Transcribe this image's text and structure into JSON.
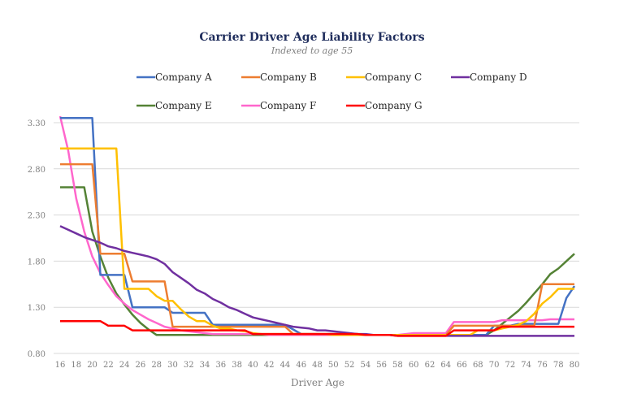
{
  "chart_data": {
    "type": "line",
    "title": "Carrier Driver Age Liability Factors",
    "subtitle": "Indexed to age 55",
    "xlabel": "Driver Age",
    "ylabel": "",
    "ylim": [
      0.8,
      3.3
    ],
    "yticks": [
      "3.30",
      "2.80",
      "2.30",
      "1.80",
      "1.30",
      "0.80"
    ],
    "ytick_values": [
      3.3,
      2.8,
      2.3,
      1.8,
      1.3,
      0.8
    ],
    "xlim": [
      16,
      80
    ],
    "xticks": [
      "16",
      "18",
      "20",
      "22",
      "24",
      "26",
      "28",
      "30",
      "32",
      "34",
      "36",
      "38",
      "40",
      "42",
      "44",
      "46",
      "48",
      "50",
      "52",
      "54",
      "56",
      "58",
      "60",
      "62",
      "64",
      "66",
      "68",
      "70",
      "72",
      "74",
      "76",
      "78",
      "80"
    ],
    "grid": true,
    "legend_position": "top",
    "x": [
      16,
      17,
      18,
      19,
      20,
      21,
      22,
      23,
      24,
      25,
      26,
      27,
      28,
      29,
      30,
      31,
      32,
      33,
      34,
      35,
      36,
      37,
      38,
      39,
      40,
      41,
      42,
      43,
      44,
      45,
      46,
      47,
      48,
      49,
      50,
      51,
      52,
      53,
      54,
      55,
      56,
      57,
      58,
      59,
      60,
      61,
      62,
      63,
      64,
      65,
      66,
      67,
      68,
      69,
      70,
      71,
      72,
      73,
      74,
      75,
      76,
      77,
      78,
      79,
      80
    ],
    "series": [
      {
        "name": "Company A",
        "color": "#4472c4",
        "values": [
          3.35,
          3.35,
          3.35,
          3.35,
          3.35,
          1.65,
          1.65,
          1.65,
          1.65,
          1.3,
          1.3,
          1.3,
          1.3,
          1.3,
          1.24,
          1.24,
          1.24,
          1.24,
          1.24,
          1.11,
          1.11,
          1.11,
          1.11,
          1.11,
          1.11,
          1.11,
          1.11,
          1.11,
          1.11,
          1.06,
          1.01,
          1.01,
          1.01,
          1.01,
          1.01,
          1.01,
          1.01,
          1.01,
          1.0,
          1.0,
          1.0,
          1.0,
          1.0,
          1.0,
          1.0,
          1.0,
          1.0,
          1.0,
          1.0,
          1.0,
          1.0,
          1.0,
          1.0,
          1.0,
          1.1,
          1.1,
          1.1,
          1.12,
          1.12,
          1.12,
          1.12,
          1.12,
          1.12,
          1.4,
          1.53
        ]
      },
      {
        "name": "Company B",
        "color": "#ed7d31",
        "values": [
          2.85,
          2.85,
          2.85,
          2.85,
          2.85,
          1.88,
          1.88,
          1.88,
          1.88,
          1.58,
          1.58,
          1.58,
          1.58,
          1.58,
          1.09,
          1.09,
          1.09,
          1.09,
          1.09,
          1.09,
          1.09,
          1.09,
          1.09,
          1.09,
          1.09,
          1.09,
          1.09,
          1.09,
          1.09,
          1.01,
          1.01,
          1.01,
          1.01,
          1.01,
          1.01,
          1.01,
          1.01,
          1.01,
          1.0,
          1.0,
          1.0,
          1.0,
          1.0,
          1.0,
          1.0,
          1.0,
          1.0,
          1.0,
          1.0,
          1.1,
          1.1,
          1.1,
          1.1,
          1.1,
          1.1,
          1.1,
          1.1,
          1.1,
          1.1,
          1.1,
          1.55,
          1.55,
          1.55,
          1.55,
          1.55
        ]
      },
      {
        "name": "Company C",
        "color": "#ffc000",
        "values": [
          3.02,
          3.02,
          3.02,
          3.02,
          3.02,
          3.02,
          3.02,
          3.02,
          1.5,
          1.5,
          1.5,
          1.5,
          1.42,
          1.37,
          1.37,
          1.28,
          1.2,
          1.15,
          1.15,
          1.1,
          1.07,
          1.07,
          1.05,
          1.04,
          1.02,
          1.01,
          1.01,
          1.01,
          1.01,
          1.01,
          1.01,
          1.01,
          1.01,
          1.01,
          1.0,
          1.0,
          1.0,
          1.0,
          1.0,
          1.0,
          1.0,
          1.0,
          1.0,
          1.0,
          1.0,
          1.0,
          1.0,
          1.0,
          1.0,
          1.0,
          1.0,
          1.0,
          1.05,
          1.05,
          1.05,
          1.07,
          1.09,
          1.11,
          1.15,
          1.23,
          1.34,
          1.41,
          1.5,
          1.5,
          1.5
        ]
      },
      {
        "name": "Company D",
        "color": "#7030a0",
        "values": [
          2.18,
          2.14,
          2.1,
          2.06,
          2.03,
          2.0,
          1.96,
          1.94,
          1.91,
          1.89,
          1.87,
          1.85,
          1.82,
          1.77,
          1.68,
          1.62,
          1.56,
          1.49,
          1.45,
          1.39,
          1.35,
          1.3,
          1.27,
          1.23,
          1.19,
          1.17,
          1.15,
          1.13,
          1.11,
          1.09,
          1.08,
          1.07,
          1.05,
          1.05,
          1.04,
          1.03,
          1.02,
          1.01,
          1.01,
          1.0,
          1.0,
          1.0,
          0.99,
          0.99,
          0.99,
          0.99,
          0.99,
          0.99,
          0.99,
          0.99,
          0.99,
          0.99,
          0.99,
          0.99,
          0.99,
          0.99,
          0.99,
          0.99,
          0.99,
          0.99,
          0.99,
          0.99,
          0.99,
          0.99,
          0.99
        ]
      },
      {
        "name": "Company E",
        "color": "#548235",
        "values": [
          2.6,
          2.6,
          2.6,
          2.6,
          2.12,
          1.85,
          1.62,
          1.45,
          1.33,
          1.22,
          1.13,
          1.06,
          1.0,
          1.0,
          1.0,
          1.0,
          1.0,
          1.0,
          1.0,
          1.0,
          1.0,
          1.0,
          1.0,
          1.0,
          1.0,
          1.0,
          1.0,
          1.0,
          1.0,
          1.0,
          1.0,
          1.0,
          1.0,
          1.0,
          1.0,
          1.0,
          1.0,
          1.0,
          1.0,
          1.0,
          1.0,
          1.0,
          1.0,
          1.0,
          1.0,
          1.0,
          1.0,
          1.0,
          1.0,
          1.0,
          1.0,
          1.0,
          1.0,
          1.0,
          1.05,
          1.12,
          1.19,
          1.26,
          1.35,
          1.45,
          1.55,
          1.66,
          1.72,
          1.8,
          1.88
        ]
      },
      {
        "name": "Company F",
        "color": "#ff66cc",
        "values": [
          3.37,
          3.0,
          2.48,
          2.12,
          1.85,
          1.67,
          1.54,
          1.42,
          1.34,
          1.27,
          1.22,
          1.17,
          1.13,
          1.09,
          1.07,
          1.05,
          1.04,
          1.03,
          1.02,
          1.01,
          1.01,
          1.01,
          1.01,
          1.01,
          1.01,
          1.01,
          1.0,
          1.0,
          1.0,
          1.0,
          1.0,
          1.0,
          1.0,
          1.0,
          1.0,
          1.0,
          1.0,
          1.0,
          1.0,
          1.0,
          1.0,
          1.0,
          1.0,
          1.01,
          1.02,
          1.02,
          1.02,
          1.02,
          1.02,
          1.14,
          1.14,
          1.14,
          1.14,
          1.14,
          1.14,
          1.16,
          1.16,
          1.16,
          1.16,
          1.16,
          1.16,
          1.17,
          1.17,
          1.17,
          1.17
        ]
      },
      {
        "name": "Company G",
        "color": "#ff0000",
        "values": [
          1.15,
          1.15,
          1.15,
          1.15,
          1.15,
          1.15,
          1.1,
          1.1,
          1.1,
          1.05,
          1.05,
          1.05,
          1.05,
          1.05,
          1.05,
          1.05,
          1.05,
          1.05,
          1.05,
          1.05,
          1.05,
          1.05,
          1.05,
          1.05,
          1.01,
          1.01,
          1.01,
          1.01,
          1.01,
          1.01,
          1.01,
          1.01,
          1.01,
          1.01,
          1.01,
          1.01,
          1.01,
          1.01,
          1.0,
          1.0,
          1.0,
          1.0,
          0.99,
          0.99,
          0.99,
          0.99,
          0.99,
          0.99,
          0.99,
          1.05,
          1.05,
          1.05,
          1.05,
          1.05,
          1.05,
          1.09,
          1.09,
          1.09,
          1.09,
          1.09,
          1.09,
          1.09,
          1.09,
          1.09,
          1.09
        ]
      }
    ]
  }
}
